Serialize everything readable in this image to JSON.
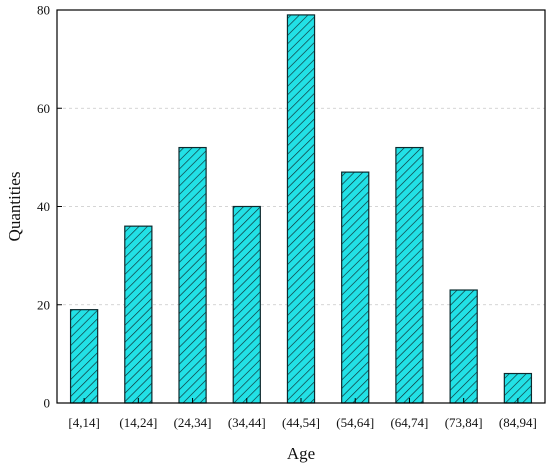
{
  "chart_data": {
    "type": "bar",
    "title": "",
    "xlabel": "Age",
    "ylabel": "Quantities",
    "categories": [
      "[4,14]",
      "(14,24]",
      "(24,34]",
      "(34,44]",
      "(44,54]",
      "(54,64]",
      "(64,74]",
      "(73,84]",
      "(84,94]"
    ],
    "values": [
      19,
      36,
      52,
      40,
      79,
      47,
      52,
      23,
      6
    ],
    "ylim": [
      0,
      80
    ],
    "yticks": [
      0,
      20,
      40,
      60,
      80
    ],
    "grid": "horizontal dashed",
    "bar_fill": "#22e1e6",
    "bar_hatch": "diagonal lines",
    "bar_edge": "#0d2a2e"
  }
}
